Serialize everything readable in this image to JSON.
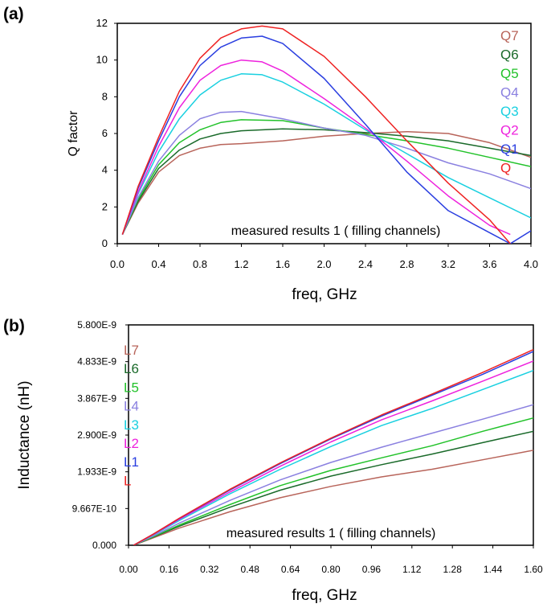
{
  "chart_data": [
    {
      "panel_label": "(a)",
      "type": "line",
      "ylabel": "Q factor",
      "xlabel": "freq, GHz",
      "annotation": "measured results 1 ( filling channels)",
      "xlim": [
        0.0,
        4.0
      ],
      "ylim": [
        0,
        12
      ],
      "x_ticks": [
        "0.0",
        "0.4",
        "0.8",
        "1.2",
        "1.6",
        "2.0",
        "2.4",
        "2.8",
        "3.2",
        "3.6",
        "4.0"
      ],
      "y_ticks": [
        "0",
        "2",
        "4",
        "6",
        "8",
        "10",
        "12"
      ],
      "legend_position": "right",
      "series": [
        {
          "name": "Q7",
          "color": "#b8645a",
          "x": [
            0.05,
            0.2,
            0.4,
            0.6,
            0.8,
            1.0,
            1.2,
            1.6,
            2.0,
            2.4,
            2.8,
            3.2,
            3.6,
            4.0
          ],
          "y": [
            0.5,
            2.2,
            3.9,
            4.8,
            5.2,
            5.4,
            5.45,
            5.6,
            5.85,
            6.0,
            6.1,
            6.0,
            5.5,
            4.7
          ]
        },
        {
          "name": "Q6",
          "color": "#1a6a2a",
          "x": [
            0.05,
            0.2,
            0.4,
            0.6,
            0.8,
            1.0,
            1.2,
            1.6,
            2.0,
            2.4,
            2.8,
            3.2,
            3.6,
            4.0
          ],
          "y": [
            0.5,
            2.3,
            4.1,
            5.1,
            5.7,
            6.0,
            6.15,
            6.25,
            6.2,
            6.05,
            5.85,
            5.6,
            5.2,
            4.8
          ]
        },
        {
          "name": "Q5",
          "color": "#22c22a",
          "x": [
            0.05,
            0.2,
            0.4,
            0.6,
            0.8,
            1.0,
            1.2,
            1.6,
            2.0,
            2.4,
            2.8,
            3.2,
            3.6,
            4.0
          ],
          "y": [
            0.5,
            2.4,
            4.3,
            5.5,
            6.2,
            6.6,
            6.75,
            6.7,
            6.3,
            5.95,
            5.6,
            5.2,
            4.7,
            4.2
          ]
        },
        {
          "name": "Q4",
          "color": "#8a80e0",
          "x": [
            0.05,
            0.2,
            0.4,
            0.6,
            0.8,
            1.0,
            1.2,
            1.6,
            2.0,
            2.4,
            2.8,
            3.2,
            3.6,
            4.0
          ],
          "y": [
            0.5,
            2.5,
            4.5,
            5.9,
            6.8,
            7.15,
            7.2,
            6.8,
            6.3,
            5.9,
            5.2,
            4.4,
            3.8,
            3.0
          ]
        },
        {
          "name": "Q3",
          "color": "#19d0e0",
          "x": [
            0.05,
            0.2,
            0.4,
            0.6,
            0.8,
            1.0,
            1.2,
            1.4,
            1.6,
            2.0,
            2.4,
            2.8,
            3.2,
            3.6,
            4.0
          ],
          "y": [
            0.5,
            2.7,
            5.0,
            6.8,
            8.1,
            8.9,
            9.25,
            9.2,
            8.8,
            7.6,
            6.2,
            4.9,
            3.6,
            2.5,
            1.4
          ]
        },
        {
          "name": "Q2",
          "color": "#ee22dd",
          "x": [
            0.05,
            0.2,
            0.4,
            0.6,
            0.8,
            1.0,
            1.2,
            1.4,
            1.6,
            2.0,
            2.4,
            2.8,
            3.2,
            3.6,
            3.8
          ],
          "y": [
            0.5,
            2.8,
            5.3,
            7.4,
            8.9,
            9.7,
            10.0,
            9.9,
            9.4,
            7.9,
            6.3,
            4.5,
            2.6,
            1.0,
            0.5
          ]
        },
        {
          "name": "Q1",
          "color": "#2a3ee0",
          "x": [
            0.05,
            0.2,
            0.4,
            0.6,
            0.8,
            1.0,
            1.2,
            1.4,
            1.6,
            2.0,
            2.4,
            2.8,
            3.2,
            3.6,
            3.8,
            4.0
          ],
          "y": [
            0.5,
            3.0,
            5.6,
            8.0,
            9.7,
            10.7,
            11.2,
            11.3,
            10.9,
            9.0,
            6.5,
            3.9,
            1.8,
            0.6,
            0.0,
            0.7
          ]
        },
        {
          "name": "Q",
          "color": "#ee2222",
          "x": [
            0.05,
            0.2,
            0.4,
            0.6,
            0.8,
            1.0,
            1.2,
            1.4,
            1.6,
            2.0,
            2.4,
            2.8,
            3.2,
            3.6,
            3.8
          ],
          "y": [
            0.5,
            3.1,
            5.8,
            8.3,
            10.1,
            11.2,
            11.7,
            11.85,
            11.7,
            10.2,
            8.0,
            5.6,
            3.3,
            1.3,
            0.0
          ]
        }
      ]
    },
    {
      "panel_label": "(b)",
      "type": "line",
      "ylabel": "Inductance (nH)",
      "xlabel": "freq, GHz",
      "annotation": "measured results 1 ( filling channels)",
      "xlim": [
        0.0,
        1.6
      ],
      "ylim": [
        0,
        5.8e-09
      ],
      "x_ticks": [
        "0.00",
        "0.16",
        "0.32",
        "0.48",
        "0.64",
        "0.80",
        "0.96",
        "1.12",
        "1.28",
        "1.44",
        "1.60"
      ],
      "y_ticks": [
        "0.000",
        "9.667E-10",
        "1.933E-9",
        "2.900E-9",
        "3.867E-9",
        "4.833E-9",
        "5.800E-9"
      ],
      "legend_position": "top-left",
      "series": [
        {
          "name": "L7",
          "color": "#b8645a",
          "x": [
            0.02,
            0.1,
            0.2,
            0.4,
            0.6,
            0.8,
            1.0,
            1.2,
            1.4,
            1.6
          ],
          "y": [
            0.0,
            2e-10,
            4.5e-10,
            8.8e-10,
            1.25e-09,
            1.55e-09,
            1.8e-09,
            2e-09,
            2.25e-09,
            2.5e-09
          ]
        },
        {
          "name": "L6",
          "color": "#1a6a2a",
          "x": [
            0.02,
            0.1,
            0.2,
            0.4,
            0.6,
            0.8,
            1.0,
            1.2,
            1.4,
            1.6
          ],
          "y": [
            0.0,
            2.2e-10,
            5e-10,
            1e-09,
            1.45e-09,
            1.82e-09,
            2.12e-09,
            2.4e-09,
            2.7e-09,
            3e-09
          ]
        },
        {
          "name": "L5",
          "color": "#22c22a",
          "x": [
            0.02,
            0.1,
            0.2,
            0.4,
            0.6,
            0.8,
            1.0,
            1.2,
            1.4,
            1.6
          ],
          "y": [
            0.0,
            2.3e-10,
            5.3e-10,
            1.07e-09,
            1.57e-09,
            1.97e-09,
            2.3e-09,
            2.62e-09,
            3e-09,
            3.35e-09
          ]
        },
        {
          "name": "L4",
          "color": "#8a80e0",
          "x": [
            0.02,
            0.1,
            0.2,
            0.4,
            0.6,
            0.8,
            1.0,
            1.2,
            1.4,
            1.6
          ],
          "y": [
            0.0,
            2.5e-10,
            5.8e-10,
            1.18e-09,
            1.72e-09,
            2.18e-09,
            2.58e-09,
            2.95e-09,
            3.32e-09,
            3.7e-09
          ]
        },
        {
          "name": "L3",
          "color": "#19d0e0",
          "x": [
            0.02,
            0.1,
            0.2,
            0.4,
            0.6,
            0.8,
            1.0,
            1.2,
            1.4,
            1.6
          ],
          "y": [
            0.0,
            2.8e-10,
            6.5e-10,
            1.35e-09,
            2e-09,
            2.6e-09,
            3.15e-09,
            3.6e-09,
            4.1e-09,
            4.6e-09
          ]
        },
        {
          "name": "L2",
          "color": "#ee22dd",
          "x": [
            0.02,
            0.1,
            0.2,
            0.4,
            0.6,
            0.8,
            1.0,
            1.2,
            1.4,
            1.6
          ],
          "y": [
            0.0,
            2.9e-10,
            6.8e-10,
            1.4e-09,
            2.08e-09,
            2.72e-09,
            3.3e-09,
            3.8e-09,
            4.32e-09,
            4.85e-09
          ]
        },
        {
          "name": "L1",
          "color": "#2a3ee0",
          "x": [
            0.02,
            0.1,
            0.2,
            0.4,
            0.6,
            0.8,
            1.0,
            1.2,
            1.4,
            1.6
          ],
          "y": [
            0.0,
            3e-10,
            7e-10,
            1.45e-09,
            2.15e-09,
            2.8e-09,
            3.4e-09,
            3.95e-09,
            4.5e-09,
            5.1e-09
          ]
        },
        {
          "name": "L",
          "color": "#ee2222",
          "x": [
            0.02,
            0.1,
            0.2,
            0.4,
            0.6,
            0.8,
            1.0,
            1.2,
            1.4,
            1.6
          ],
          "y": [
            0.0,
            3e-10,
            7.1e-10,
            1.47e-09,
            2.17e-09,
            2.82e-09,
            3.43e-09,
            3.98e-09,
            4.55e-09,
            5.15e-09
          ]
        }
      ]
    }
  ]
}
